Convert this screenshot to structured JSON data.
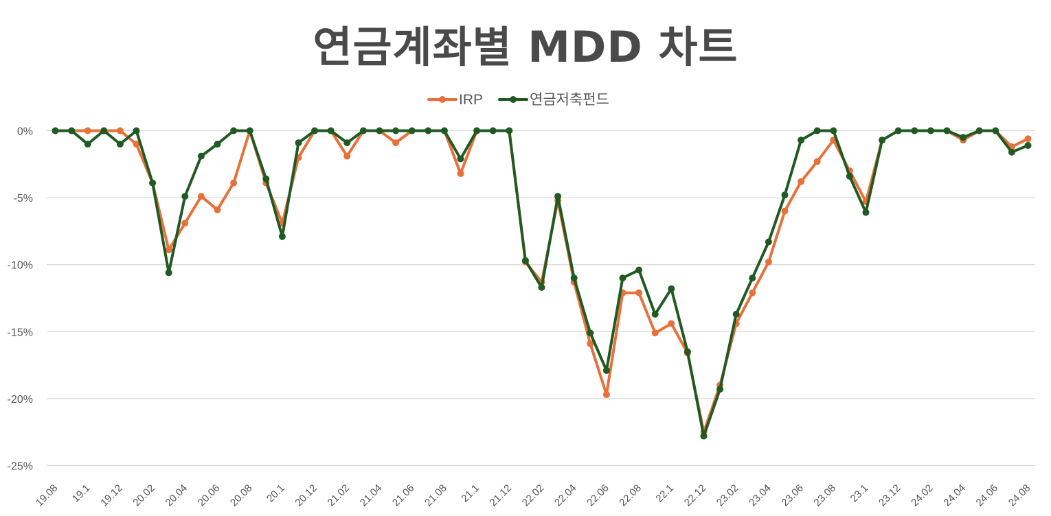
{
  "chart_data": {
    "type": "line",
    "title": "연금계좌별 MDD 차트",
    "xlabel": "",
    "ylabel": "",
    "ylim": [
      -25,
      0
    ],
    "y_ticks": [
      {
        "value": 0,
        "label": "0%"
      },
      {
        "value": -5,
        "label": "-5%"
      },
      {
        "value": -10,
        "label": "-10%"
      },
      {
        "value": -15,
        "label": "-15%"
      },
      {
        "value": -20,
        "label": "-20%"
      },
      {
        "value": -25,
        "label": "-25%"
      }
    ],
    "x_tick_labels": [
      {
        "index": 0,
        "label": "19.08"
      },
      {
        "index": 2,
        "label": "19.1"
      },
      {
        "index": 4,
        "label": "19.12"
      },
      {
        "index": 6,
        "label": "20.02"
      },
      {
        "index": 8,
        "label": "20.04"
      },
      {
        "index": 10,
        "label": "20.06"
      },
      {
        "index": 12,
        "label": "20.08"
      },
      {
        "index": 14,
        "label": "20.1"
      },
      {
        "index": 16,
        "label": "20.12"
      },
      {
        "index": 18,
        "label": "21.02"
      },
      {
        "index": 20,
        "label": "21.04"
      },
      {
        "index": 22,
        "label": "21.06"
      },
      {
        "index": 24,
        "label": "21.08"
      },
      {
        "index": 26,
        "label": "21.1"
      },
      {
        "index": 28,
        "label": "21.12"
      },
      {
        "index": 30,
        "label": "22.02"
      },
      {
        "index": 32,
        "label": "22.04"
      },
      {
        "index": 34,
        "label": "22.06"
      },
      {
        "index": 36,
        "label": "22.08"
      },
      {
        "index": 38,
        "label": "22.1"
      },
      {
        "index": 40,
        "label": "22.12"
      },
      {
        "index": 42,
        "label": "23.02"
      },
      {
        "index": 44,
        "label": "23.04"
      },
      {
        "index": 46,
        "label": "23.06"
      },
      {
        "index": 48,
        "label": "23.08"
      },
      {
        "index": 50,
        "label": "23.1"
      },
      {
        "index": 52,
        "label": "23.12"
      },
      {
        "index": 54,
        "label": "24.02"
      },
      {
        "index": 56,
        "label": "24.04"
      },
      {
        "index": 58,
        "label": "24.06"
      },
      {
        "index": 60,
        "label": "24.08"
      }
    ],
    "legend_position": "top-center",
    "grid": true,
    "series": [
      {
        "name": "IRP",
        "color": "#e8703a",
        "values": [
          0,
          0,
          0,
          0,
          0,
          -1,
          -3.9,
          -8.9,
          -6.9,
          -4.9,
          -5.9,
          -3.9,
          0,
          -3.9,
          -6.9,
          -2,
          0,
          0,
          -1.9,
          0,
          0,
          -0.9,
          0,
          0,
          0,
          -3.2,
          0,
          0,
          0,
          -9.8,
          -11.3,
          -5.2,
          -11.3,
          -15.9,
          -19.7,
          -12.1,
          -12.1,
          -15.1,
          -14.4,
          -16.6,
          -22.5,
          -19,
          -14.4,
          -12.1,
          -9.8,
          -6,
          -3.8,
          -2.3,
          -0.7,
          -3,
          -5.3,
          -0.7,
          0,
          0,
          0,
          0,
          -0.7,
          0,
          0,
          -1.2,
          -0.6
        ]
      },
      {
        "name": "연금저축펀드",
        "color": "#1f5a22",
        "values": [
          0,
          0,
          -1,
          0,
          -1,
          0,
          -3.9,
          -10.6,
          -4.9,
          -1.9,
          -1,
          0,
          0,
          -3.6,
          -7.9,
          -0.9,
          0,
          0,
          -0.9,
          0,
          0,
          0,
          0,
          0,
          0,
          -2.1,
          0,
          0,
          0,
          -9.7,
          -11.7,
          -4.9,
          -11,
          -15.1,
          -17.9,
          -11,
          -10.4,
          -13.7,
          -11.8,
          -16.5,
          -22.8,
          -19.3,
          -13.7,
          -11,
          -8.3,
          -4.8,
          -0.7,
          0,
          0,
          -3.4,
          -6.1,
          -0.7,
          0,
          0,
          0,
          0,
          -0.5,
          0,
          0,
          -1.6,
          -1.1
        ]
      }
    ]
  }
}
